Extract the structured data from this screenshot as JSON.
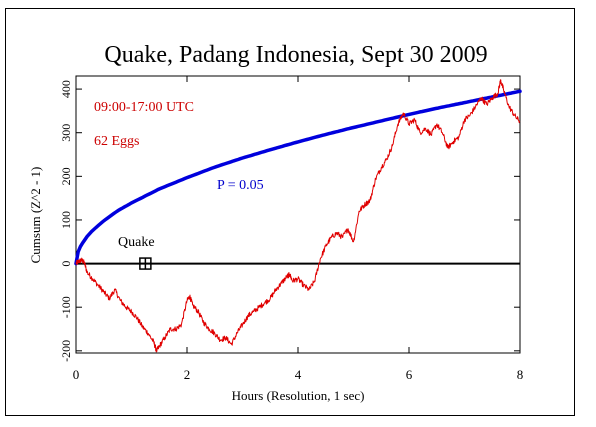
{
  "chart_data": {
    "type": "line",
    "title": "Quake, Padang Indonesia, Sept 30 2009",
    "xlabel": "Hours (Resolution, 1 sec)",
    "ylabel": "Cumsum (Z^2 - 1)",
    "xlim": [
      0,
      8
    ],
    "ylim": [
      -205,
      430
    ],
    "x_ticks": [
      0,
      2,
      4,
      6,
      8
    ],
    "y_ticks": [
      -200,
      -100,
      0,
      100,
      200,
      300,
      400
    ],
    "x_tick_labels": [
      "0",
      "2",
      "4",
      "6",
      "8"
    ],
    "y_tick_labels": [
      "-200",
      "-100",
      "0",
      "100",
      "200",
      "300",
      "400"
    ],
    "grid": false,
    "annotations": {
      "time_range": "09:00-17:00 UTC",
      "eggs": "62 Eggs",
      "p_label": "P = 0.05",
      "event_label": "Quake"
    },
    "event": {
      "x": 1.25,
      "y": 0
    },
    "colors": {
      "cumsum": "#e00000",
      "p_curve": "#0000dd",
      "baseline": "#000000",
      "annotation_red": "#cc0000",
      "annotation_blue": "#0000cc"
    },
    "series": [
      {
        "kind": "cumsum",
        "x": [
          0,
          0.05,
          0.1,
          0.15,
          0.2,
          0.3,
          0.4,
          0.5,
          0.6,
          0.7,
          0.8,
          0.9,
          1.0,
          1.1,
          1.2,
          1.3,
          1.4,
          1.45,
          1.5,
          1.6,
          1.7,
          1.8,
          1.9,
          2.0,
          2.05,
          2.1,
          2.2,
          2.3,
          2.4,
          2.5,
          2.6,
          2.7,
          2.8,
          2.9,
          3.0,
          3.1,
          3.2,
          3.3,
          3.4,
          3.5,
          3.6,
          3.7,
          3.8,
          3.85,
          3.9,
          4.0,
          4.1,
          4.2,
          4.3,
          4.4,
          4.5,
          4.6,
          4.7,
          4.8,
          4.9,
          5.0,
          5.1,
          5.2,
          5.3,
          5.4,
          5.5,
          5.6,
          5.7,
          5.8,
          5.9,
          6.0,
          6.1,
          6.2,
          6.3,
          6.4,
          6.5,
          6.6,
          6.7,
          6.8,
          6.9,
          7.0,
          7.1,
          7.2,
          7.3,
          7.4,
          7.5,
          7.6,
          7.65,
          7.7,
          7.8,
          7.9,
          8.0
        ],
        "y": [
          0,
          5,
          8,
          2,
          -20,
          -35,
          -50,
          -65,
          -80,
          -60,
          -85,
          -100,
          -110,
          -125,
          -145,
          -160,
          -180,
          -200,
          -190,
          -170,
          -150,
          -150,
          -140,
          -85,
          -75,
          -95,
          -110,
          -135,
          -150,
          -160,
          -175,
          -170,
          -185,
          -160,
          -140,
          -120,
          -110,
          -100,
          -90,
          -80,
          -60,
          -45,
          -30,
          -25,
          -40,
          -35,
          -50,
          -60,
          -40,
          10,
          40,
          60,
          70,
          60,
          80,
          50,
          120,
          135,
          145,
          195,
          220,
          240,
          270,
          320,
          345,
          320,
          330,
          300,
          310,
          295,
          320,
          300,
          265,
          280,
          290,
          330,
          340,
          360,
          380,
          365,
          380,
          390,
          420,
          400,
          360,
          340,
          325
        ]
      },
      {
        "kind": "p-curve",
        "x": [
          0,
          0.02,
          0.05,
          0.1,
          0.2,
          0.3,
          0.5,
          0.75,
          1.0,
          1.5,
          2.0,
          2.5,
          3.0,
          3.5,
          4.0,
          4.5,
          5.0,
          5.5,
          6.0,
          6.5,
          7.0,
          7.5,
          8.0
        ],
        "y": [
          0,
          20,
          31,
          44,
          62,
          76,
          98,
          121,
          139,
          171,
          197,
          221,
          242,
          261,
          279,
          296,
          312,
          327,
          342,
          356,
          369,
          382,
          395
        ]
      }
    ]
  }
}
